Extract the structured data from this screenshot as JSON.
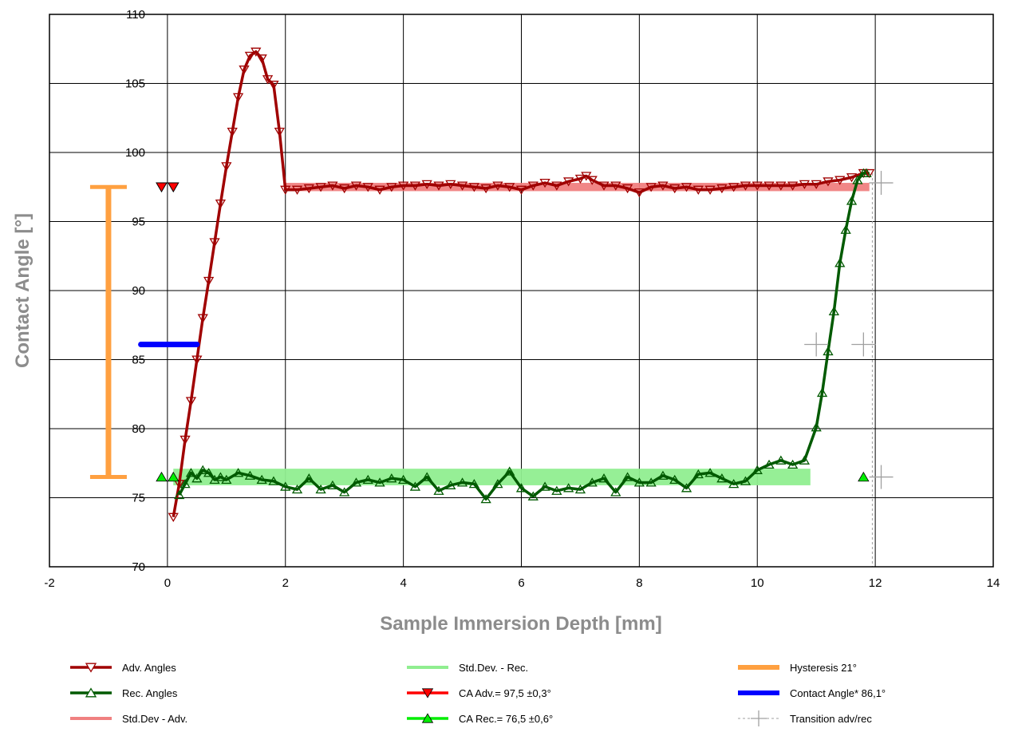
{
  "chart_data": {
    "type": "line",
    "title": "",
    "xlabel": "Sample Immersion Depth [mm]",
    "ylabel": "Contact Angle [°]",
    "xlim": [
      -2,
      14
    ],
    "ylim": [
      70,
      110
    ],
    "xticks": [
      -2,
      0,
      2,
      4,
      6,
      8,
      10,
      12,
      14
    ],
    "yticks": [
      70,
      75,
      80,
      85,
      90,
      95,
      100,
      105,
      110
    ],
    "grid": true,
    "legend_position": "bottom",
    "series": [
      {
        "name": "Adv. Angles",
        "color": "#a00000",
        "marker": "triangle-down",
        "x": [
          0.1,
          0.2,
          0.3,
          0.4,
          0.5,
          0.6,
          0.7,
          0.8,
          0.9,
          1.0,
          1.1,
          1.2,
          1.3,
          1.4,
          1.5,
          1.6,
          1.7,
          1.8,
          1.9,
          2.0,
          2.2,
          2.4,
          2.6,
          2.8,
          3.0,
          3.2,
          3.4,
          3.6,
          3.8,
          4.0,
          4.2,
          4.4,
          4.6,
          4.8,
          5.0,
          5.2,
          5.4,
          5.6,
          5.8,
          6.0,
          6.2,
          6.4,
          6.6,
          6.8,
          7.0,
          7.1,
          7.2,
          7.4,
          7.6,
          7.8,
          8.0,
          8.2,
          8.4,
          8.6,
          8.8,
          9.0,
          9.2,
          9.4,
          9.6,
          9.8,
          10.0,
          10.2,
          10.4,
          10.6,
          10.8,
          11.0,
          11.2,
          11.4,
          11.6,
          11.8,
          11.9
        ],
        "y": [
          73.6,
          76.0,
          79.2,
          82.0,
          85.0,
          88.0,
          90.7,
          93.5,
          96.3,
          99.0,
          101.5,
          104.0,
          106.0,
          107.0,
          107.3,
          106.8,
          105.3,
          104.9,
          101.5,
          97.3,
          97.3,
          97.4,
          97.5,
          97.6,
          97.4,
          97.6,
          97.5,
          97.3,
          97.5,
          97.6,
          97.6,
          97.7,
          97.6,
          97.7,
          97.6,
          97.5,
          97.4,
          97.6,
          97.5,
          97.3,
          97.6,
          97.8,
          97.6,
          97.9,
          98.1,
          98.3,
          98.0,
          97.6,
          97.6,
          97.4,
          97.1,
          97.5,
          97.6,
          97.4,
          97.5,
          97.3,
          97.3,
          97.4,
          97.5,
          97.6,
          97.6,
          97.6,
          97.6,
          97.6,
          97.7,
          97.7,
          97.9,
          98.0,
          98.2,
          98.5,
          98.5
        ]
      },
      {
        "name": "Rec. Angles",
        "color": "#005a00",
        "marker": "triangle-up",
        "x": [
          0.2,
          0.3,
          0.4,
          0.5,
          0.6,
          0.7,
          0.8,
          0.9,
          1.0,
          1.2,
          1.4,
          1.6,
          1.8,
          2.0,
          2.2,
          2.4,
          2.6,
          2.8,
          3.0,
          3.2,
          3.4,
          3.6,
          3.8,
          4.0,
          4.2,
          4.4,
          4.6,
          4.8,
          5.0,
          5.2,
          5.4,
          5.6,
          5.8,
          6.0,
          6.2,
          6.4,
          6.6,
          6.8,
          7.0,
          7.2,
          7.4,
          7.6,
          7.8,
          8.0,
          8.2,
          8.4,
          8.6,
          8.8,
          9.0,
          9.2,
          9.4,
          9.6,
          9.8,
          10.0,
          10.2,
          10.4,
          10.6,
          10.8,
          11.0,
          11.1,
          11.2,
          11.3,
          11.4,
          11.5,
          11.6,
          11.7,
          11.8,
          11.85
        ],
        "y": [
          75.2,
          76.0,
          76.8,
          76.4,
          77.0,
          76.8,
          76.3,
          76.5,
          76.3,
          76.8,
          76.6,
          76.3,
          76.2,
          75.8,
          75.6,
          76.4,
          75.6,
          75.9,
          75.4,
          76.1,
          76.3,
          76.1,
          76.4,
          76.3,
          75.8,
          76.5,
          75.5,
          75.9,
          76.1,
          76.0,
          74.9,
          76.0,
          76.9,
          75.7,
          75.1,
          75.8,
          75.5,
          75.7,
          75.6,
          76.1,
          76.4,
          75.4,
          76.5,
          76.1,
          76.1,
          76.6,
          76.3,
          75.7,
          76.7,
          76.8,
          76.4,
          76.0,
          76.2,
          77.0,
          77.4,
          77.7,
          77.4,
          77.7,
          80.1,
          82.6,
          85.6,
          88.5,
          92.0,
          94.4,
          96.5,
          98.0,
          98.5,
          98.5
        ]
      },
      {
        "name": "Std.Dev - Adv.",
        "color": "#f08080",
        "band_x": [
          2.0,
          11.9
        ],
        "band_y": [
          97.2,
          97.8
        ]
      },
      {
        "name": "Std.Dev. - Rec.",
        "color": "#90ee90",
        "band_x": [
          0.1,
          10.9
        ],
        "band_y": [
          75.9,
          77.1
        ]
      },
      {
        "name": "CA Adv.= 97,5 ±0,3°",
        "color": "#ff0000",
        "marker": "triangle-down-filled",
        "x": [
          -0.1,
          0.1
        ],
        "y": [
          97.5,
          97.5
        ]
      },
      {
        "name": "CA Rec.= 76,5 ±0,6°",
        "color": "#00ee00",
        "marker": "triangle-up-filled",
        "x": [
          -0.1,
          0.1,
          11.8
        ],
        "y": [
          76.5,
          76.5,
          76.5
        ]
      },
      {
        "name": "Hysteresis 21°",
        "color": "#ffa040",
        "x": -1.0,
        "y_range": [
          76.5,
          97.5
        ]
      },
      {
        "name": "Contact Angle* 86,1°",
        "color": "#0000ff",
        "x_range": [
          -0.45,
          0.5
        ],
        "y": 86.1
      },
      {
        "name": "Transition adv/rec",
        "color": "#a0a0a0",
        "marker": "plus",
        "x": [
          11.0,
          11.8,
          12.1,
          12.1
        ],
        "y": [
          86.1,
          86.1,
          97.8,
          76.5
        ],
        "line_x": 11.95
      }
    ]
  }
}
